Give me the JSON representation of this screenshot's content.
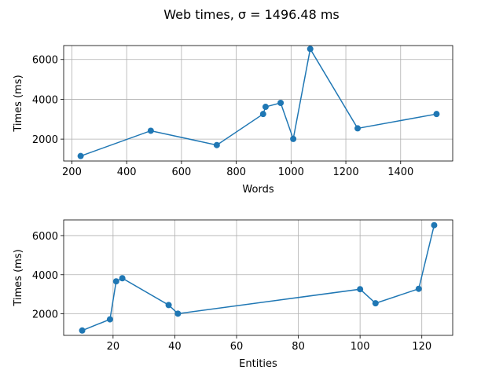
{
  "figure": {
    "suptitle": "Web times, σ = 1496.48 ms"
  },
  "chart_data": [
    {
      "type": "line",
      "xlabel": "Words",
      "ylabel": "Times (ms)",
      "xlim": [
        170,
        1590
      ],
      "ylim": [
        900,
        6700
      ],
      "xticks": [
        200,
        400,
        600,
        800,
        1000,
        1200,
        1400
      ],
      "yticks": [
        2000,
        4000,
        6000
      ],
      "grid": true,
      "color": "#1f77b4",
      "series": [
        {
          "x": [
            232,
            488,
            729,
            898,
            907,
            962,
            1008,
            1070,
            1243,
            1531
          ],
          "y": [
            1150,
            2420,
            1700,
            3260,
            3620,
            3820,
            2010,
            6530,
            2540,
            3260
          ]
        }
      ]
    },
    {
      "type": "line",
      "xlabel": "Entities",
      "ylabel": "Times (ms)",
      "xlim": [
        4,
        130
      ],
      "ylim": [
        900,
        6800
      ],
      "xticks": [
        20,
        40,
        60,
        80,
        100,
        120
      ],
      "yticks": [
        2000,
        4000,
        6000
      ],
      "grid": true,
      "color": "#1f77b4",
      "series": [
        {
          "x": [
            10,
            19,
            21,
            23,
            38,
            41,
            100,
            105,
            119,
            124
          ],
          "y": [
            1150,
            1720,
            3660,
            3820,
            2450,
            2010,
            3260,
            2540,
            3280,
            6530
          ]
        }
      ]
    }
  ]
}
